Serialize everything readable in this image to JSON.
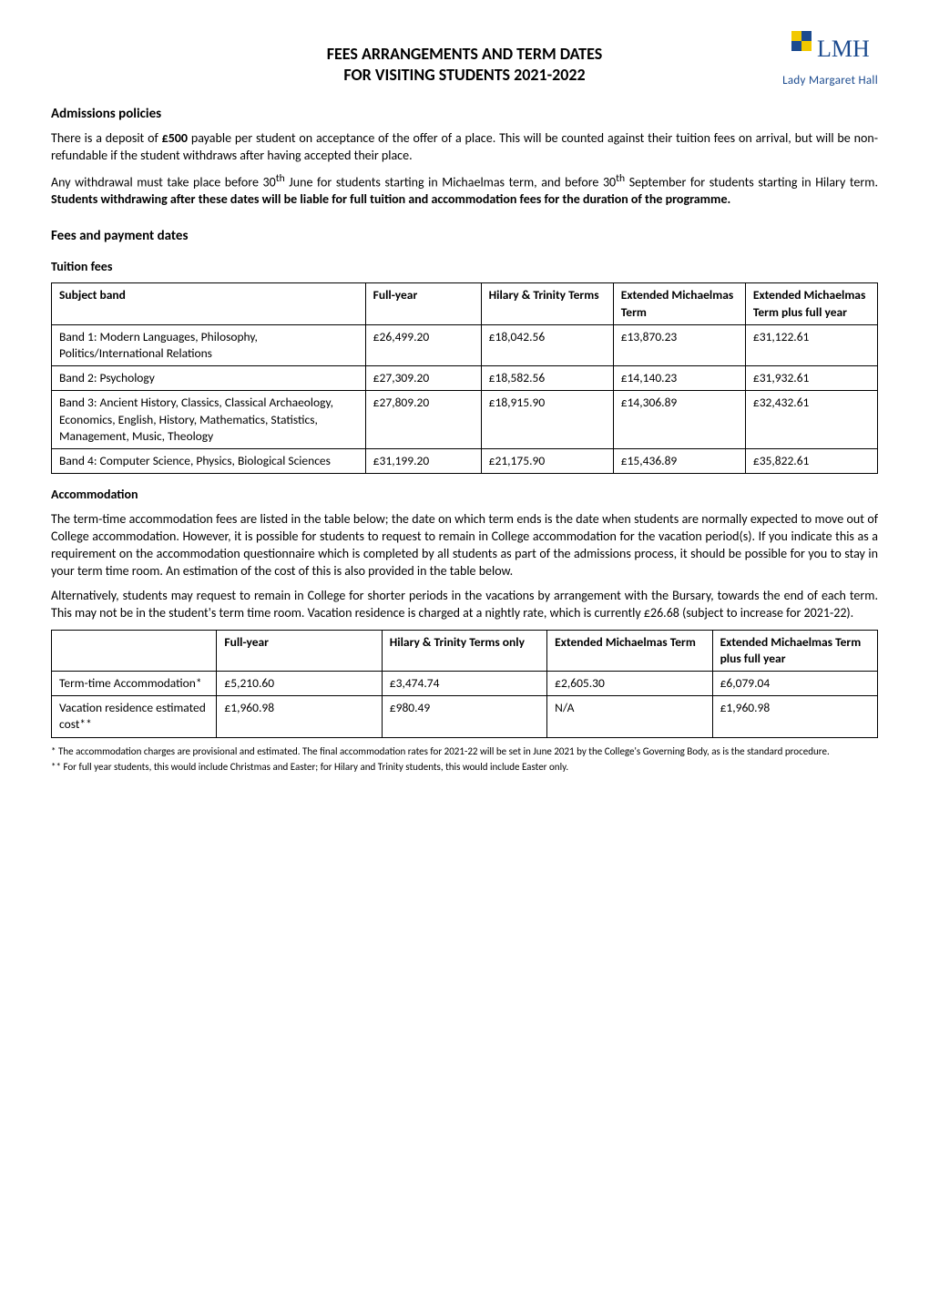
{
  "logo": {
    "text": "Lady Margaret Hall",
    "primary_color": "#1c4b8f",
    "accent_color": "#f2c800",
    "letters": "LMH"
  },
  "title_line1": "FEES ARRANGEMENTS AND TERM DATES",
  "title_line2": "FOR VISITING STUDENTS 2021-2022",
  "admissions": {
    "heading": "Admissions policies",
    "p1_a": "There is a deposit of ",
    "p1_b": "£500",
    "p1_c": " payable per student on acceptance of the offer of a place.  This will be counted against their tuition fees on arrival, but will be non-refundable if the student withdraws after having accepted their place.",
    "p2_a": "Any withdrawal must take place before 30",
    "p2_sup1": "th",
    "p2_b": " June for students starting in Michaelmas term, and before 30",
    "p2_sup2": "th",
    "p2_c": " September for students starting in Hilary term.  ",
    "p2_d": "Students withdrawing after these dates will be liable for full tuition and accommodation fees for the duration of the programme."
  },
  "fees_heading": "Fees and payment dates",
  "tuition": {
    "heading": "Tuition fees",
    "columns": [
      "Subject band",
      "Full-year",
      "Hilary & Trinity Terms",
      "Extended Michaelmas Term",
      "Extended Michaelmas Term plus full year"
    ],
    "rows": [
      [
        "Band 1: Modern Languages, Philosophy, Politics/International Relations",
        "£26,499.20",
        "£18,042.56",
        "£13,870.23",
        "£31,122.61"
      ],
      [
        "Band 2: Psychology",
        "£27,309.20",
        "£18,582.56",
        "£14,140.23",
        "£31,932.61"
      ],
      [
        "Band 3: Ancient History, Classics, Classical Archaeology, Economics, English, History, Mathematics, Statistics, Management, Music, Theology",
        "£27,809.20",
        "£18,915.90",
        "£14,306.89",
        "£32,432.61"
      ],
      [
        "Band 4: Computer Science, Physics, Biological Sciences",
        "£31,199.20",
        "£21,175.90",
        "£15,436.89",
        "£35,822.61"
      ]
    ],
    "col_widths": [
      "38%",
      "14%",
      "16%",
      "16%",
      "16%"
    ]
  },
  "accommodation": {
    "heading": "Accommodation",
    "p1": "The term-time accommodation fees are listed in the table below; the date on which term ends is the date when students are normally expected to move out of College accommodation.  However, it is possible for students to request to remain in College accommodation for the vacation period(s).  If you indicate this as a requirement on the accommodation questionnaire which is completed by all students as part of the admissions process, it should be possible for you to stay in your term time room.  An estimation of the cost of this is also provided in the table below.",
    "p2": "Alternatively, students may request to remain in College for shorter periods in the vacations by arrangement with the Bursary, towards the end of each term.  This may not be in the student's term time room.  Vacation residence is charged at a nightly rate, which is currently £26.68 (subject to increase for 2021-22).",
    "columns": [
      "",
      "Full-year",
      "Hilary & Trinity Terms only",
      "Extended Michaelmas Term",
      "Extended Michaelmas Term plus full year"
    ],
    "rows": [
      [
        "Term-time Accommodation*",
        "£5,210.60",
        "£3,474.74",
        "£2,605.30",
        "£6,079.04"
      ],
      [
        "Vacation residence estimated cost**",
        "£1,960.98",
        "£980.49",
        "N/A",
        "£1,960.98"
      ]
    ],
    "col_widths": [
      "20%",
      "20%",
      "20%",
      "20%",
      "20%"
    ],
    "footnote1": "* The accommodation charges are provisional and estimated.  The final accommodation rates for 2021-22 will be set in June 2021 by the College's Governing Body, as is the standard procedure.",
    "footnote2": "** For full year students, this would include Christmas and Easter; for Hilary and Trinity students, this would include Easter only."
  }
}
